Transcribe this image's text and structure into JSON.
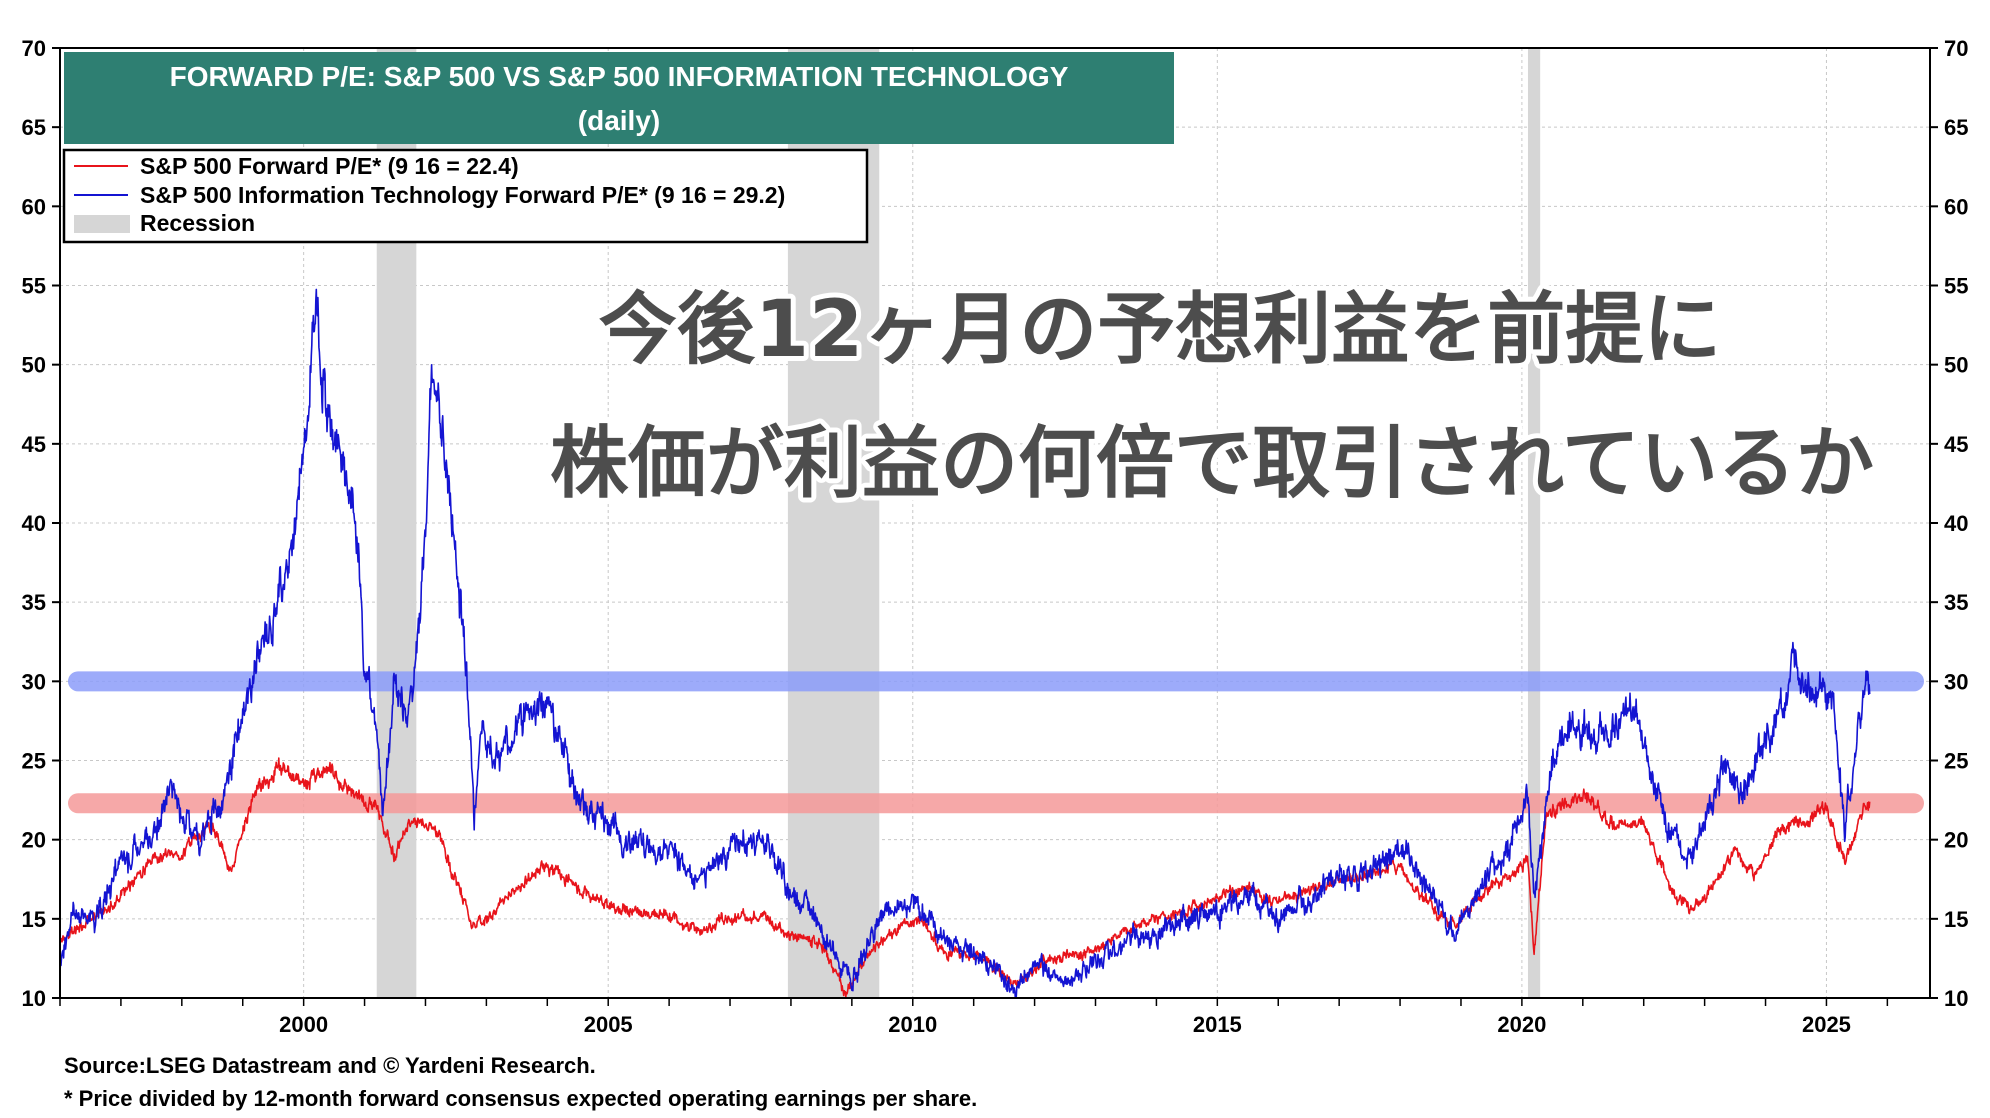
{
  "chart_data": {
    "type": "line",
    "title": "FORWARD P/E: S&P 500 VS S&P 500 INFORMATION TECHNOLOGY",
    "subtitle": "(daily)",
    "ylim": [
      10,
      70
    ],
    "y_ticks": [
      10,
      15,
      20,
      25,
      30,
      35,
      40,
      45,
      50,
      55,
      60,
      65,
      70
    ],
    "xlim": [
      1996.0,
      2026.7
    ],
    "x_tick_labels": [
      "2000",
      "2005",
      "2010",
      "2015",
      "2020",
      "2025"
    ],
    "x_tick_values": [
      2000,
      2005,
      2010,
      2015,
      2020,
      2025
    ],
    "grid": true,
    "legend_position": "top-left",
    "series": [
      {
        "name": "S&P 500 Forward P/E* (9 16 = 22.4)",
        "color": "#e8141b",
        "points": [
          [
            1996.0,
            13.8
          ],
          [
            1996.5,
            14.8
          ],
          [
            1997.0,
            16.5
          ],
          [
            1997.5,
            18.5
          ],
          [
            1998.0,
            19.2
          ],
          [
            1998.5,
            21.0
          ],
          [
            1998.8,
            18.0
          ],
          [
            1999.2,
            23.0
          ],
          [
            1999.6,
            24.5
          ],
          [
            2000.0,
            23.5
          ],
          [
            2000.4,
            24.5
          ],
          [
            2000.8,
            23.0
          ],
          [
            2001.2,
            22.0
          ],
          [
            2001.5,
            19.0
          ],
          [
            2001.8,
            21.5
          ],
          [
            2002.2,
            20.5
          ],
          [
            2002.5,
            17.5
          ],
          [
            2002.8,
            14.5
          ],
          [
            2003.0,
            15.0
          ],
          [
            2003.5,
            17.0
          ],
          [
            2004.0,
            18.3
          ],
          [
            2004.5,
            17.0
          ],
          [
            2005.0,
            15.8
          ],
          [
            2005.5,
            15.5
          ],
          [
            2006.0,
            15.3
          ],
          [
            2006.5,
            14.2
          ],
          [
            2007.0,
            15.0
          ],
          [
            2007.5,
            15.2
          ],
          [
            2008.0,
            14.0
          ],
          [
            2008.5,
            13.5
          ],
          [
            2008.9,
            10.2
          ],
          [
            2009.3,
            13.0
          ],
          [
            2009.8,
            14.5
          ],
          [
            2010.2,
            14.8
          ],
          [
            2010.5,
            12.8
          ],
          [
            2011.0,
            12.8
          ],
          [
            2011.7,
            10.8
          ],
          [
            2012.2,
            12.5
          ],
          [
            2012.8,
            12.7
          ],
          [
            2013.5,
            14.2
          ],
          [
            2014.0,
            15.0
          ],
          [
            2014.5,
            15.5
          ],
          [
            2015.0,
            16.4
          ],
          [
            2015.5,
            17.0
          ],
          [
            2016.0,
            16.0
          ],
          [
            2016.5,
            16.8
          ],
          [
            2017.0,
            17.5
          ],
          [
            2017.5,
            17.8
          ],
          [
            2018.0,
            18.5
          ],
          [
            2018.3,
            16.5
          ],
          [
            2018.9,
            14.5
          ],
          [
            2019.3,
            16.5
          ],
          [
            2019.8,
            17.8
          ],
          [
            2020.1,
            18.8
          ],
          [
            2020.2,
            13.0
          ],
          [
            2020.4,
            21.5
          ],
          [
            2020.7,
            22.2
          ],
          [
            2021.0,
            22.8
          ],
          [
            2021.5,
            21.0
          ],
          [
            2022.0,
            21.0
          ],
          [
            2022.5,
            16.5
          ],
          [
            2022.8,
            15.5
          ],
          [
            2023.2,
            17.5
          ],
          [
            2023.5,
            19.5
          ],
          [
            2023.8,
            17.5
          ],
          [
            2024.2,
            20.5
          ],
          [
            2024.6,
            21.2
          ],
          [
            2025.0,
            22.0
          ],
          [
            2025.3,
            18.5
          ],
          [
            2025.6,
            22.0
          ],
          [
            2025.71,
            22.4
          ]
        ]
      },
      {
        "name": "S&P 500 Information Technology Forward P/E* (9 16 = 29.2)",
        "color": "#1414d2",
        "points": [
          [
            1996.0,
            12.0
          ],
          [
            1996.2,
            15.5
          ],
          [
            1996.6,
            15.0
          ],
          [
            1997.0,
            18.5
          ],
          [
            1997.5,
            20.0
          ],
          [
            1997.8,
            23.5
          ],
          [
            1998.0,
            21.5
          ],
          [
            1998.3,
            20.0
          ],
          [
            1998.7,
            23.0
          ],
          [
            1998.9,
            26.0
          ],
          [
            1999.2,
            31.0
          ],
          [
            1999.5,
            34.0
          ],
          [
            1999.8,
            38.0
          ],
          [
            2000.0,
            45.0
          ],
          [
            2000.2,
            53.5
          ],
          [
            2000.3,
            49.0
          ],
          [
            2000.5,
            45.0
          ],
          [
            2000.7,
            43.0
          ],
          [
            2000.9,
            38.0
          ],
          [
            2001.0,
            31.0
          ],
          [
            2001.2,
            27.0
          ],
          [
            2001.3,
            22.0
          ],
          [
            2001.5,
            30.0
          ],
          [
            2001.7,
            28.0
          ],
          [
            2001.9,
            33.0
          ],
          [
            2002.0,
            40.0
          ],
          [
            2002.1,
            50.0
          ],
          [
            2002.3,
            45.0
          ],
          [
            2002.5,
            38.0
          ],
          [
            2002.7,
            30.0
          ],
          [
            2002.8,
            21.0
          ],
          [
            2002.9,
            27.0
          ],
          [
            2003.2,
            25.0
          ],
          [
            2003.6,
            28.0
          ],
          [
            2003.9,
            28.5
          ],
          [
            2004.2,
            27.0
          ],
          [
            2004.5,
            22.5
          ],
          [
            2004.9,
            21.5
          ],
          [
            2005.2,
            20.0
          ],
          [
            2005.6,
            19.5
          ],
          [
            2006.0,
            19.8
          ],
          [
            2006.4,
            17.5
          ],
          [
            2007.0,
            19.5
          ],
          [
            2007.6,
            19.8
          ],
          [
            2008.0,
            16.5
          ],
          [
            2008.4,
            15.5
          ],
          [
            2008.8,
            12.0
          ],
          [
            2009.0,
            11.0
          ],
          [
            2009.5,
            15.5
          ],
          [
            2010.0,
            16.0
          ],
          [
            2010.3,
            15.0
          ],
          [
            2010.5,
            13.5
          ],
          [
            2011.0,
            13.0
          ],
          [
            2011.7,
            10.5
          ],
          [
            2012.0,
            12.0
          ],
          [
            2012.6,
            11.0
          ],
          [
            2013.0,
            12.5
          ],
          [
            2013.8,
            14.0
          ],
          [
            2014.5,
            15.0
          ],
          [
            2015.0,
            15.5
          ],
          [
            2015.6,
            16.5
          ],
          [
            2016.0,
            14.8
          ],
          [
            2016.5,
            16.5
          ],
          [
            2017.0,
            17.5
          ],
          [
            2017.5,
            18.0
          ],
          [
            2018.0,
            19.5
          ],
          [
            2018.3,
            18.0
          ],
          [
            2018.9,
            14.0
          ],
          [
            2019.3,
            17.0
          ],
          [
            2019.8,
            19.5
          ],
          [
            2020.1,
            22.5
          ],
          [
            2020.2,
            16.0
          ],
          [
            2020.5,
            25.0
          ],
          [
            2020.8,
            27.5
          ],
          [
            2021.2,
            26.5
          ],
          [
            2021.5,
            27.0
          ],
          [
            2021.9,
            28.0
          ],
          [
            2022.3,
            22.0
          ],
          [
            2022.7,
            18.5
          ],
          [
            2022.9,
            20.0
          ],
          [
            2023.3,
            24.5
          ],
          [
            2023.6,
            23.0
          ],
          [
            2023.9,
            25.5
          ],
          [
            2024.2,
            27.5
          ],
          [
            2024.5,
            31.0
          ],
          [
            2024.8,
            29.5
          ],
          [
            2025.1,
            28.5
          ],
          [
            2025.3,
            21.0
          ],
          [
            2025.5,
            26.0
          ],
          [
            2025.65,
            30.0
          ],
          [
            2025.71,
            29.2
          ]
        ]
      }
    ],
    "recessions": [
      [
        2001.2,
        2001.85
      ],
      [
        2007.95,
        2009.45
      ],
      [
        2020.1,
        2020.3
      ]
    ],
    "reference_lines": [
      {
        "value": 30.0,
        "color": "#8c9dfa"
      },
      {
        "value": 22.3,
        "color": "#f59a9a"
      }
    ],
    "legend": {
      "sp500": "S&P 500 Forward P/E* (9 16 = 22.4)",
      "it": "S&P 500 Information Technology Forward P/E* (9 16 = 29.2)",
      "recession": "Recession"
    }
  },
  "annotation": {
    "line1": "今後12ヶ月の予想利益を前提に",
    "line2": "株価が利益の何倍で取引されているか"
  },
  "footnotes": {
    "source": "Source:LSEG Datastream and © Yardeni Research.",
    "note": "* Price divided by 12-month forward consensus expected operating earnings per share."
  },
  "colors": {
    "title_bg": "#2e7f72",
    "sp500": "#e8141b",
    "it": "#1414d2",
    "recession": "#d6d6d6"
  }
}
